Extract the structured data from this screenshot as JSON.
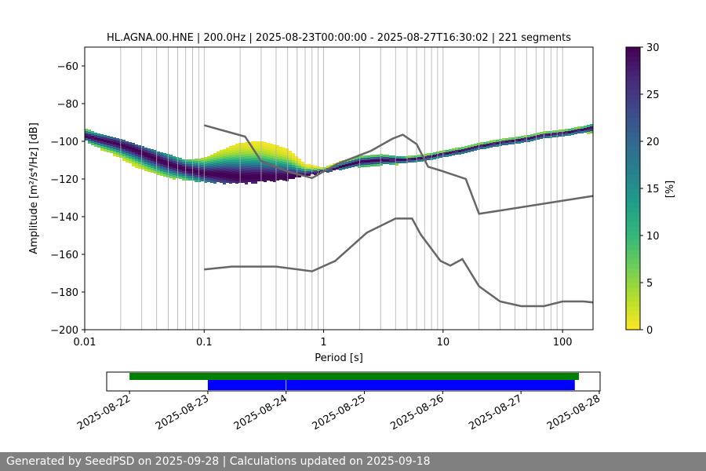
{
  "chart_data": [
    {
      "type": "heatmap",
      "title": "HL.AGNA.00.HNE | 200.0Hz | 2025-08-23T00:00:00 - 2025-08-27T16:30:02 | 221 segments",
      "xlabel": "Period [s]",
      "ylabel": "Amplitude [m²/s⁴/Hz] [dB]",
      "x_scale": "log",
      "xlim": [
        0.01,
        180
      ],
      "ylim": [
        -200,
        -50
      ],
      "x_ticks": [
        0.01,
        0.1,
        1,
        10,
        100
      ],
      "x_tick_labels": [
        "0.01",
        "0.1",
        "1",
        "10",
        "100"
      ],
      "y_ticks": [
        -200,
        -180,
        -160,
        -140,
        -120,
        -100,
        -80,
        -60
      ],
      "y_tick_labels": [
        "−200",
        "−180",
        "−160",
        "−140",
        "−120",
        "−100",
        "−80",
        "−60"
      ],
      "grid": "vertical lines at log-decade minor ticks",
      "colormap": "viridis_r",
      "colorbar": {
        "label": "[%]",
        "range": [
          0,
          30
        ],
        "ticks": [
          0,
          5,
          10,
          15,
          20,
          25,
          30
        ],
        "tick_labels": [
          "0",
          "5",
          "10",
          "15",
          "20",
          "25",
          "30"
        ]
      },
      "psd_mode": {
        "x": [
          0.01,
          0.013,
          0.018,
          0.025,
          0.035,
          0.05,
          0.07,
          0.1,
          0.15,
          0.2,
          0.3,
          0.5,
          0.7,
          1.0,
          1.5,
          2.0,
          3.0,
          4.0,
          5.0,
          7.0,
          10,
          15,
          20,
          30,
          50,
          70,
          100,
          150,
          180
        ],
        "y": [
          -97,
          -99,
          -101,
          -104,
          -108,
          -112,
          -115,
          -117,
          -118,
          -119,
          -119,
          -119,
          -118,
          -116,
          -113,
          -111,
          -110,
          -110,
          -110,
          -109,
          -107,
          -105,
          -103,
          -101,
          -99,
          -97,
          -96,
          -94,
          -93
        ]
      },
      "psd_spread_low": {
        "x": [
          0.01,
          0.013,
          0.018,
          0.025,
          0.035,
          0.05,
          0.07,
          0.1,
          0.15,
          0.2,
          0.3,
          0.5,
          0.7,
          1.0,
          1.5,
          2.0,
          3.0,
          4.0,
          5.0,
          7.0,
          10,
          15,
          20,
          30,
          50,
          70,
          100,
          150,
          180
        ],
        "y": [
          -99,
          -103,
          -107,
          -112,
          -116,
          -119,
          -120,
          -121,
          -122,
          -122,
          -121,
          -120,
          -118,
          -116,
          -114,
          -113,
          -112,
          -112,
          -111,
          -110,
          -108,
          -106,
          -104,
          -102,
          -100,
          -98,
          -97,
          -95,
          -95
        ]
      },
      "psd_spread_high": {
        "x": [
          0.01,
          0.013,
          0.018,
          0.025,
          0.035,
          0.05,
          0.07,
          0.1,
          0.15,
          0.2,
          0.3,
          0.5,
          0.7,
          1.0,
          1.5,
          2.0,
          3.0,
          4.0,
          5.0,
          7.0,
          10,
          15,
          20,
          30,
          50,
          70,
          100,
          150,
          180
        ],
        "y": [
          -93,
          -96,
          -98,
          -101,
          -104,
          -107,
          -110,
          -109,
          -104,
          -101,
          -100,
          -104,
          -112,
          -114,
          -110,
          -108,
          -107,
          -108,
          -108,
          -107,
          -105,
          -103,
          -101,
          -99,
          -97,
          -95,
          -94,
          -92,
          -91
        ]
      },
      "reference_curves": [
        {
          "x": [
            0.1,
            0.22,
            0.3,
            0.5,
            0.8,
            1.3,
            2.5,
            3.8,
            4.6,
            6.0,
            7.5,
            9.5,
            15.5,
            20.0,
            180
          ],
          "y": [
            -91.5,
            -97.5,
            -110.5,
            -116,
            -119.5,
            -112,
            -105,
            -98.5,
            -96.5,
            -101.5,
            -113.5,
            -115.5,
            -120,
            -138.5,
            -129
          ]
        },
        {
          "x": [
            0.1,
            0.17,
            0.4,
            0.8,
            1.25,
            2.3,
            4.0,
            5.5,
            6.5,
            9.5,
            11.5,
            14.5,
            20.0,
            30.0,
            45,
            70,
            100,
            150,
            180
          ],
          "y": [
            -168,
            -166.5,
            -166.5,
            -169,
            -163.5,
            -148.5,
            -141,
            -141,
            -149.5,
            -163.5,
            -166,
            -162.5,
            -177,
            -185,
            -187.5,
            -187.5,
            -185,
            -185,
            -185.5
          ]
        }
      ]
    },
    {
      "type": "timeline",
      "x_tick_labels": [
        "2025-08-22",
        "2025-08-23",
        "2025-08-24",
        "2025-08-25",
        "2025-08-26",
        "2025-08-27",
        "2025-08-28"
      ],
      "xlim": [
        "2025-08-21T17:00",
        "2025-08-28T00:15"
      ],
      "bars": [
        {
          "row": "top",
          "color": "#008000",
          "start": "2025-08-22T00:00",
          "end": "2025-08-27T17:45"
        },
        {
          "row": "bottom",
          "color": "#0000ff",
          "start": "2025-08-23T00:00",
          "end": "2025-08-23T23:55"
        },
        {
          "row": "bottom",
          "color": "#0000ff",
          "start": "2025-08-24T00:05",
          "end": "2025-08-27T16:30"
        }
      ]
    }
  ],
  "footer": {
    "text": "Generated by SeedPSD on 2025-09-28 | Calculations updated on 2025-09-18"
  }
}
